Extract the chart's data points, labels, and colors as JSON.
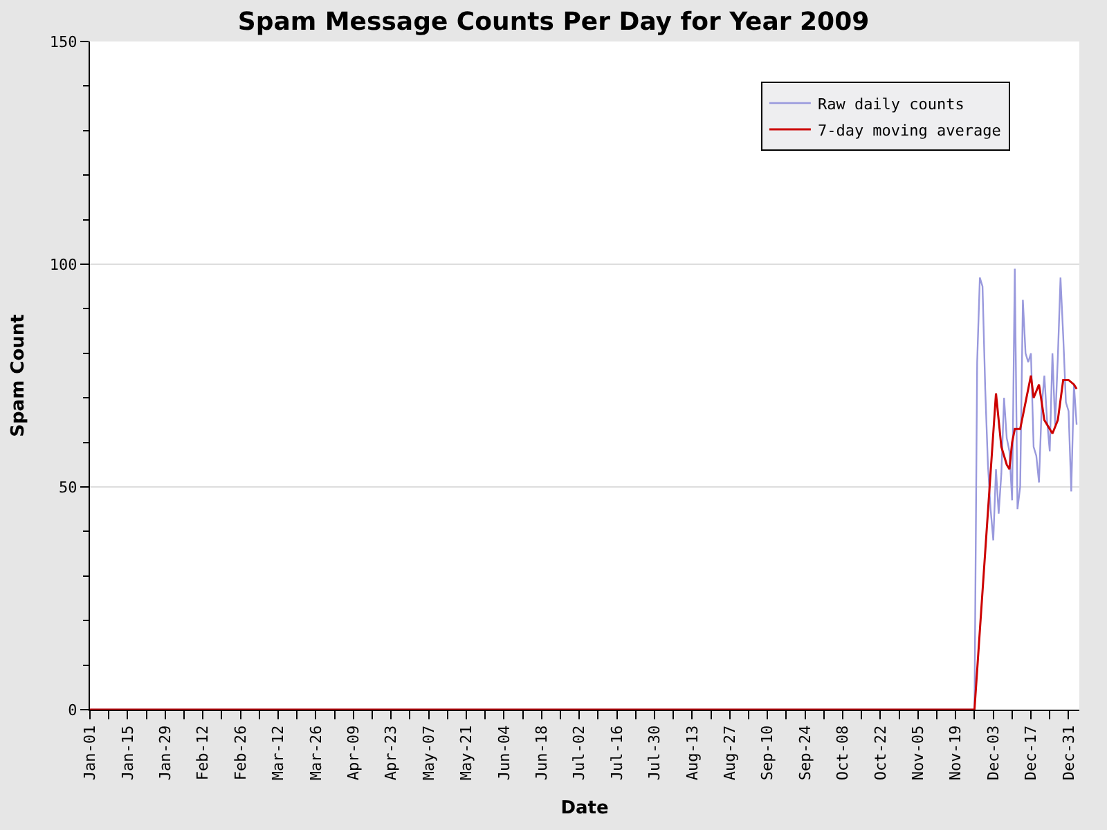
{
  "chart_data": {
    "type": "line",
    "title": "Spam Message Counts Per Day for Year 2009",
    "xlabel": "Date",
    "ylabel": "Spam Count",
    "xlim": [
      "2009-01-01",
      "2010-01-04"
    ],
    "xticks": [
      {
        "value": "2009-01-01",
        "label": "Jan-01"
      },
      {
        "value": "2009-01-08",
        "label": null
      },
      {
        "value": "2009-01-15",
        "label": "Jan-15"
      },
      {
        "value": "2009-01-22",
        "label": null
      },
      {
        "value": "2009-01-29",
        "label": "Jan-29"
      },
      {
        "value": "2009-02-05",
        "label": null
      },
      {
        "value": "2009-02-12",
        "label": "Feb-12"
      },
      {
        "value": "2009-02-19",
        "label": null
      },
      {
        "value": "2009-02-26",
        "label": "Feb-26"
      },
      {
        "value": "2009-03-05",
        "label": null
      },
      {
        "value": "2009-03-12",
        "label": "Mar-12"
      },
      {
        "value": "2009-03-19",
        "label": null
      },
      {
        "value": "2009-03-26",
        "label": "Mar-26"
      },
      {
        "value": "2009-04-02",
        "label": null
      },
      {
        "value": "2009-04-09",
        "label": "Apr-09"
      },
      {
        "value": "2009-04-16",
        "label": null
      },
      {
        "value": "2009-04-23",
        "label": "Apr-23"
      },
      {
        "value": "2009-04-30",
        "label": null
      },
      {
        "value": "2009-05-07",
        "label": "May-07"
      },
      {
        "value": "2009-05-14",
        "label": null
      },
      {
        "value": "2009-05-21",
        "label": "May-21"
      },
      {
        "value": "2009-05-28",
        "label": null
      },
      {
        "value": "2009-06-04",
        "label": "Jun-04"
      },
      {
        "value": "2009-06-11",
        "label": null
      },
      {
        "value": "2009-06-18",
        "label": "Jun-18"
      },
      {
        "value": "2009-06-25",
        "label": null
      },
      {
        "value": "2009-07-02",
        "label": "Jul-02"
      },
      {
        "value": "2009-07-09",
        "label": null
      },
      {
        "value": "2009-07-16",
        "label": "Jul-16"
      },
      {
        "value": "2009-07-23",
        "label": null
      },
      {
        "value": "2009-07-30",
        "label": "Jul-30"
      },
      {
        "value": "2009-08-06",
        "label": null
      },
      {
        "value": "2009-08-13",
        "label": "Aug-13"
      },
      {
        "value": "2009-08-20",
        "label": null
      },
      {
        "value": "2009-08-27",
        "label": "Aug-27"
      },
      {
        "value": "2009-09-03",
        "label": null
      },
      {
        "value": "2009-09-10",
        "label": "Sep-10"
      },
      {
        "value": "2009-09-17",
        "label": null
      },
      {
        "value": "2009-09-24",
        "label": "Sep-24"
      },
      {
        "value": "2009-10-01",
        "label": null
      },
      {
        "value": "2009-10-08",
        "label": "Oct-08"
      },
      {
        "value": "2009-10-15",
        "label": null
      },
      {
        "value": "2009-10-22",
        "label": "Oct-22"
      },
      {
        "value": "2009-10-29",
        "label": null
      },
      {
        "value": "2009-11-05",
        "label": "Nov-05"
      },
      {
        "value": "2009-11-12",
        "label": null
      },
      {
        "value": "2009-11-19",
        "label": "Nov-19"
      },
      {
        "value": "2009-11-26",
        "label": null
      },
      {
        "value": "2009-12-03",
        "label": "Dec-03"
      },
      {
        "value": "2009-12-10",
        "label": null
      },
      {
        "value": "2009-12-17",
        "label": "Dec-17"
      },
      {
        "value": "2009-12-24",
        "label": null
      },
      {
        "value": "2009-12-31",
        "label": "Dec-31"
      }
    ],
    "ylim": [
      0,
      150
    ],
    "yticks": [
      0,
      {
        "value": 10,
        "label": null
      },
      {
        "value": 20,
        "label": null
      },
      {
        "value": 30,
        "label": null
      },
      {
        "value": 40,
        "label": null
      },
      50,
      {
        "value": 60,
        "label": null
      },
      {
        "value": 70,
        "label": null
      },
      {
        "value": 80,
        "label": null
      },
      {
        "value": 90,
        "label": null
      },
      100,
      {
        "value": 110,
        "label": null
      },
      {
        "value": 120,
        "label": null
      },
      {
        "value": 130,
        "label": null
      },
      {
        "value": 140,
        "label": null
      },
      150
    ],
    "grid": "y",
    "legend": "top right",
    "marker": "none",
    "line_style": "solid",
    "series": [
      {
        "name": "Raw daily counts",
        "color": "#9999dd",
        "x": [
          "2009-01-01",
          "2009-11-26",
          "2009-11-27",
          "2009-11-28",
          "2009-11-29",
          "2009-11-30",
          "2009-12-01",
          "2009-12-02",
          "2009-12-03",
          "2009-12-04",
          "2009-12-05",
          "2009-12-06",
          "2009-12-07",
          "2009-12-08",
          "2009-12-09",
          "2009-12-10",
          "2009-12-11",
          "2009-12-12",
          "2009-12-13",
          "2009-12-14",
          "2009-12-15",
          "2009-12-16",
          "2009-12-17",
          "2009-12-18",
          "2009-12-19",
          "2009-12-20",
          "2009-12-21",
          "2009-12-22",
          "2009-12-23",
          "2009-12-24",
          "2009-12-25",
          "2009-12-26",
          "2009-12-27",
          "2009-12-28",
          "2009-12-29",
          "2009-12-30",
          "2009-12-31",
          "2010-01-01",
          "2010-01-02",
          "2010-01-03"
        ],
        "values": [
          0,
          0,
          78,
          97,
          95,
          72,
          55,
          45,
          38,
          54,
          44,
          53,
          70,
          61,
          58,
          47,
          99,
          45,
          50,
          92,
          80,
          78,
          80,
          59,
          57,
          51,
          68,
          75,
          65,
          58,
          80,
          64,
          79,
          97,
          84,
          69,
          67,
          49,
          73,
          64
        ]
      },
      {
        "name": "7-day moving average",
        "color": "#cc0000",
        "x": [
          "2009-01-01",
          "2009-11-26",
          "2009-12-04",
          "2009-12-06",
          "2009-12-08",
          "2009-12-09",
          "2009-12-10",
          "2009-12-11",
          "2009-12-13",
          "2009-12-15",
          "2009-12-17",
          "2009-12-18",
          "2009-12-20",
          "2009-12-22",
          "2009-12-25",
          "2009-12-27",
          "2009-12-29",
          "2009-12-31",
          "2010-01-02",
          "2010-01-03"
        ],
        "values": [
          0,
          0,
          71,
          59,
          55,
          54,
          60,
          63,
          63,
          69,
          75,
          70,
          73,
          65,
          62,
          65,
          74,
          74,
          73,
          72
        ]
      }
    ]
  }
}
